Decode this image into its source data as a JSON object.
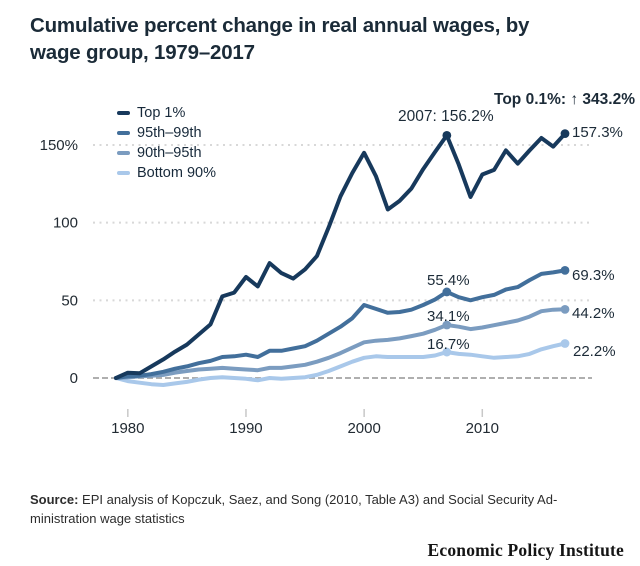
{
  "chart_data": {
    "type": "line",
    "title": "Cumulative percent change in real annual wages, by\nwage group, 1979–2017",
    "xlabel": "",
    "ylabel": "",
    "x_range": [
      1979,
      2017
    ],
    "ylim": [
      -15,
      170
    ],
    "grid": "dotted horizontal gridlines at 50, 100, 150; dashed gray baseline at 0",
    "legend_position": "top-left inside plot",
    "x": [
      1979,
      1980,
      1981,
      1982,
      1983,
      1984,
      1985,
      1986,
      1987,
      1988,
      1989,
      1990,
      1991,
      1992,
      1993,
      1994,
      1995,
      1996,
      1997,
      1998,
      1999,
      2000,
      2001,
      2002,
      2003,
      2004,
      2005,
      2006,
      2007,
      2008,
      2009,
      2010,
      2011,
      2012,
      2013,
      2014,
      2015,
      2016,
      2017
    ],
    "x_ticks": [
      {
        "value": 1980,
        "label": "1980"
      },
      {
        "value": 1990,
        "label": "1990"
      },
      {
        "value": 2000,
        "label": "2000"
      },
      {
        "value": 2010,
        "label": "2010"
      }
    ],
    "y_ticks": [
      {
        "value": 150,
        "label": "150%"
      },
      {
        "value": 100,
        "label": "100"
      },
      {
        "value": 50,
        "label": "50"
      },
      {
        "value": 0,
        "label": "0"
      }
    ],
    "marker_years": [
      2007,
      2017
    ],
    "series": [
      {
        "name": "Top 1%",
        "color": "#17395c",
        "values": [
          0,
          3.4,
          3,
          7.5,
          12,
          17,
          21.5,
          28,
          34.5,
          52.5,
          55,
          65,
          59,
          74,
          67.5,
          64,
          70,
          78.5,
          97,
          117,
          132,
          145,
          130,
          108.5,
          114,
          122,
          134.5,
          145.5,
          156.2,
          137.5,
          116.5,
          131,
          134,
          146.5,
          138,
          146.5,
          154.5,
          149,
          157.3
        ]
      },
      {
        "name": "95th–99th",
        "color": "#426f9b",
        "values": [
          0,
          1,
          1.5,
          2.5,
          4,
          6,
          7.5,
          9.5,
          11,
          13.5,
          14,
          15,
          13.5,
          17.5,
          17.5,
          19,
          20.5,
          24,
          28.5,
          33,
          38.5,
          47,
          44.5,
          42,
          42.5,
          44,
          47,
          50.5,
          55.4,
          52,
          50,
          52,
          53.5,
          57,
          58.5,
          63,
          67,
          68,
          69.3
        ]
      },
      {
        "name": "90th–95th",
        "color": "#7b9cc0",
        "values": [
          0,
          0.5,
          1,
          1.5,
          2,
          3.5,
          4.5,
          5.5,
          6,
          6.5,
          6,
          5.5,
          5,
          6.5,
          6.5,
          7.5,
          8.5,
          10.5,
          13,
          16,
          19.5,
          23,
          24,
          24.5,
          25.5,
          27,
          28.5,
          31,
          34.1,
          33,
          31.5,
          32.5,
          34,
          35.5,
          37,
          39.5,
          43,
          44,
          44.2
        ]
      },
      {
        "name": "Bottom 90%",
        "color": "#a9c8ea",
        "values": [
          0,
          -2,
          -3,
          -4,
          -4.5,
          -3.5,
          -2.5,
          -1,
          0,
          0.5,
          0,
          -0.5,
          -1.5,
          0,
          -0.5,
          0,
          0.5,
          2,
          4.5,
          7.5,
          10.5,
          13,
          14,
          13.5,
          13.5,
          13.5,
          13.5,
          14.5,
          16.7,
          15.5,
          15,
          14,
          13,
          13.5,
          14,
          15.5,
          18.5,
          20.5,
          22.2
        ]
      }
    ],
    "annotations": {
      "top01": "Top 0.1%: ↑ 343.2%",
      "peak_2007_top1": "2007: 156.2%",
      "end_top1": "157.3%",
      "mid_95_99": "55.4%",
      "end_95_99": "69.3%",
      "mid_90_95": "34.1%",
      "end_90_95": "44.2%",
      "mid_bottom90": "16.7%",
      "end_bottom90": "22.2%"
    }
  },
  "source": {
    "label": "Source:",
    "text": " EPI analysis of Kopczuk, Saez, and Song (2010, Table A3) and Social Security Ad-\nministration wage statistics"
  },
  "footer": {
    "brand": "Economic Policy Institute"
  },
  "colors": {
    "title_text": "#1b2b38",
    "grid_dotted": "#d8d8d8",
    "baseline": "#a4a4a4",
    "tick": "#c8c8c8",
    "axis_text": "#222b33"
  }
}
